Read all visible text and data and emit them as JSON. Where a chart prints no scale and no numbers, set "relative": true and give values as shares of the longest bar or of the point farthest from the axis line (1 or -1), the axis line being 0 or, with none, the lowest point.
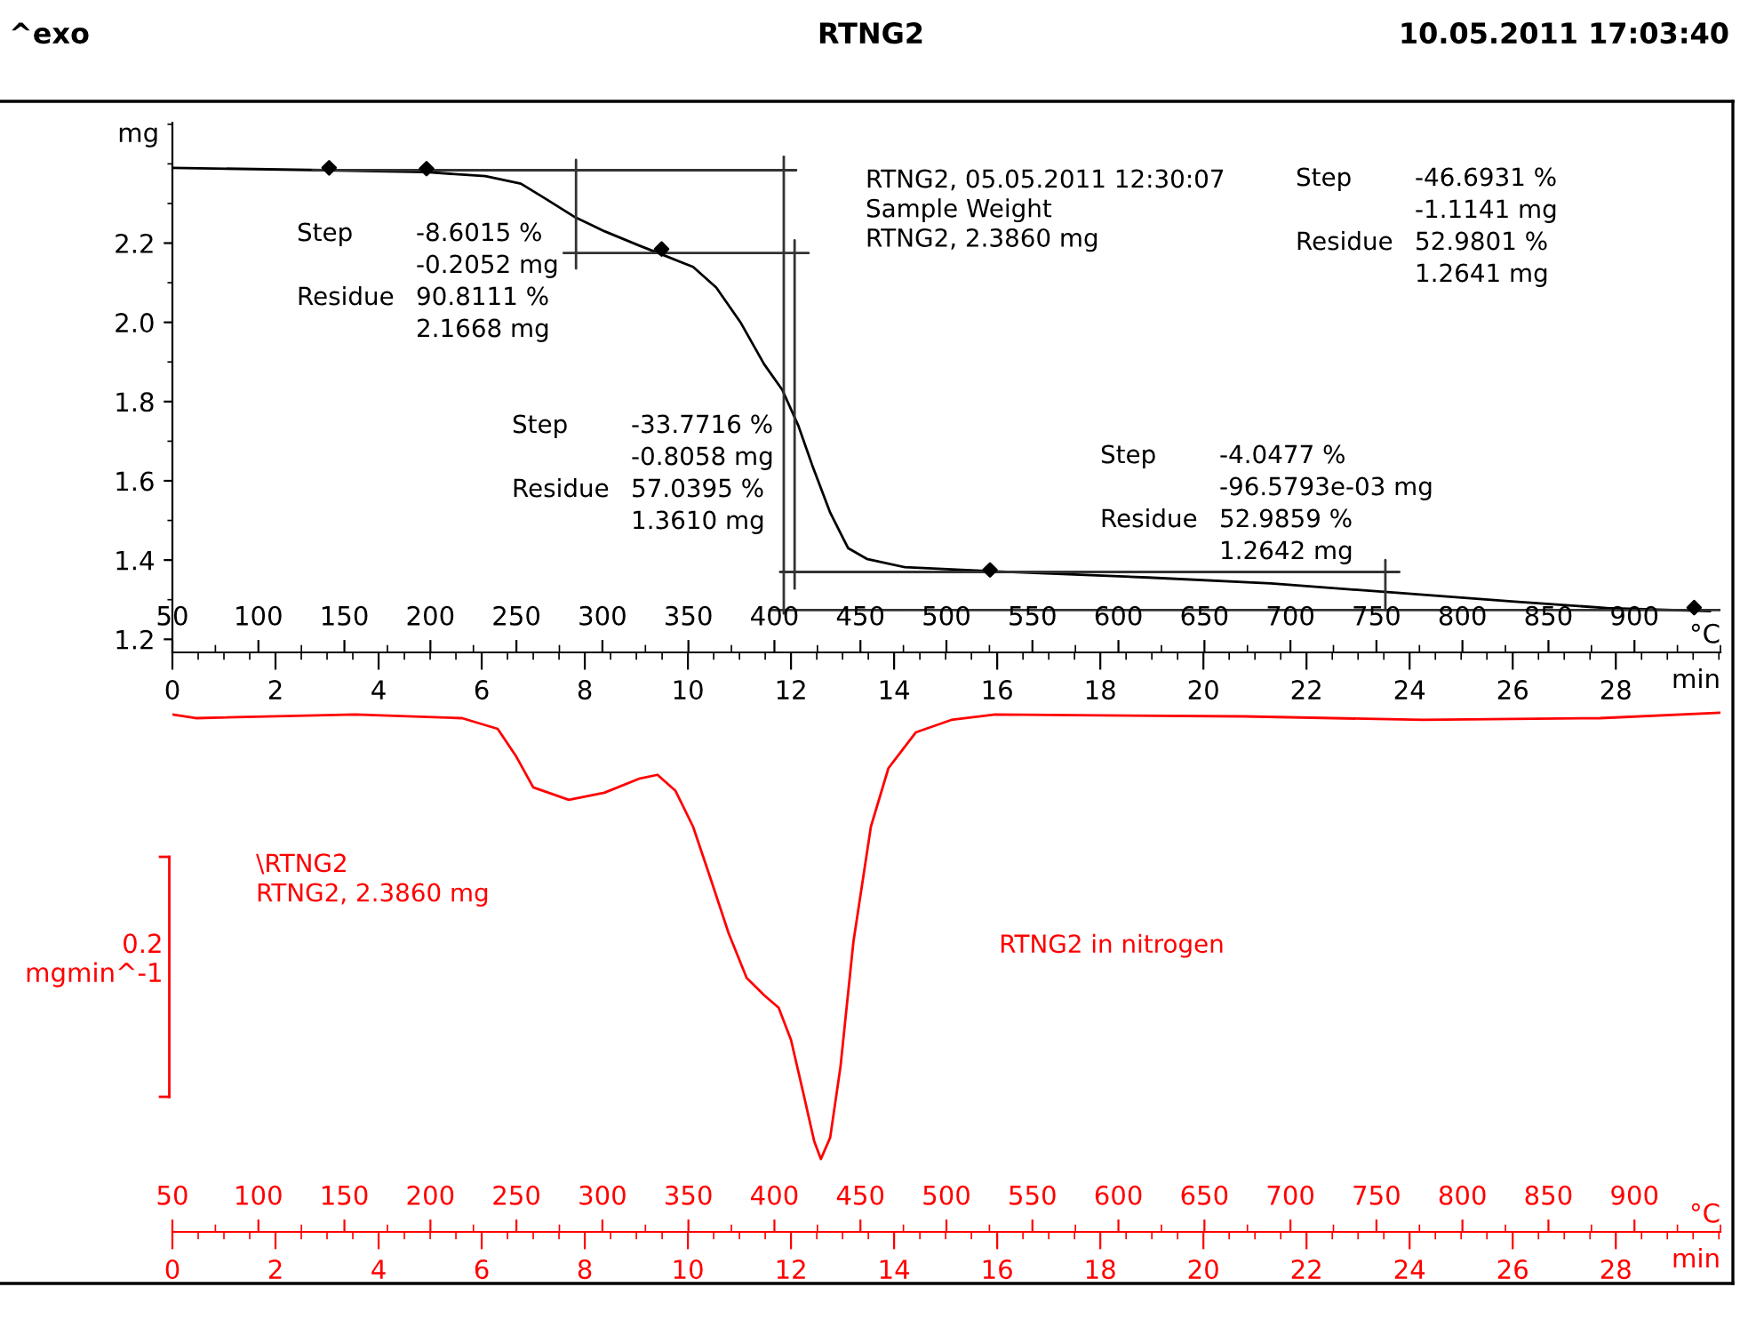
{
  "chart_data": [
    {
      "type": "line",
      "title": "RTNG2",
      "ylabel": "mg",
      "xlabel": "min",
      "x2label": "°C",
      "xlim": [
        0,
        30.03
      ],
      "xticks": [
        0,
        2,
        4,
        6,
        8,
        10,
        12,
        14,
        16,
        18,
        20,
        22,
        24,
        26,
        28
      ],
      "x2lim": [
        50,
        950
      ],
      "x2ticks": [
        50,
        100,
        150,
        200,
        250,
        300,
        350,
        400,
        450,
        500,
        550,
        600,
        650,
        700,
        750,
        800,
        850,
        900
      ],
      "ylim": [
        1.167,
        2.504
      ],
      "yticks": [
        1.2,
        1.4,
        1.6,
        1.8,
        {
          "value": 2,
          "label": "2.0"
        },
        2.2
      ],
      "series": [
        {
          "color": "#000000",
          "x": [
            0,
            2.96,
            4.93,
            6.07,
            6.76,
            7.24,
            7.79,
            8.38,
            9.07,
            9.52,
            10.1,
            10.55,
            11.03,
            11.48,
            11.83,
            12.14,
            12.41,
            12.76,
            13.0,
            13.11,
            13.47,
            14.21,
            15.86,
            18.93,
            21.31,
            23.69,
            26.04,
            27.83,
            29.83
          ],
          "values": [
            2.39,
            2.384,
            2.379,
            2.369,
            2.35,
            2.312,
            2.267,
            2.23,
            2.193,
            2.17,
            2.14,
            2.088,
            1.998,
            1.894,
            1.83,
            1.74,
            1.64,
            1.52,
            1.458,
            1.43,
            1.403,
            1.382,
            1.372,
            1.356,
            1.341,
            1.318,
            1.295,
            1.279,
            1.271
          ]
        },
        {
          "color": "#333333",
          "x": [
            2.72,
            12.1
          ],
          "values": [
            2.384,
            2.384
          ]
        },
        {
          "color": "#333333",
          "x": [
            7.59,
            12.34
          ],
          "values": [
            2.175,
            2.175
          ]
        },
        {
          "color": "#333333",
          "x": [
            11.79,
            23.8
          ],
          "values": [
            1.37,
            1.37
          ]
        },
        {
          "color": "#333333",
          "x": [
            11.59,
            30.03
          ],
          "values": [
            1.274,
            1.274
          ]
        },
        {
          "color": "#333333",
          "x": [
            7.83,
            7.83
          ],
          "values": [
            2.41,
            2.136
          ]
        },
        {
          "color": "#333333",
          "x": [
            11.86,
            11.86
          ],
          "values": [
            2.418,
            1.265
          ]
        },
        {
          "color": "#333333",
          "x": [
            12.07,
            12.07
          ],
          "values": [
            2.207,
            1.328
          ]
        },
        {
          "color": "#333333",
          "x": [
            23.53,
            23.53
          ],
          "values": [
            1.4,
            1.274
          ]
        },
        {
          "type": "scatter",
          "marker": "diamond",
          "color": "#000000",
          "x": [
            3.04,
            4.93,
            9.49,
            15.86,
            29.52
          ],
          "values": [
            2.39,
            2.388,
            2.185,
            1.375,
            1.28
          ]
        }
      ],
      "annotations": [
        "^exo",
        "10.05.2011 17:03:40",
        "Step",
        "-8.6015 %",
        "-0.2052 mg",
        "Residue",
        "90.8111 %",
        "2.1668 mg",
        "Step",
        "-33.7716 %",
        "-0.8058 mg",
        "Residue",
        "57.0395 %",
        "1.3610 mg",
        "RTNG2, 05.05.2011 12:30:07\nSample Weight\nRTNG2, 2.3860 mg",
        "Step",
        "-46.6931 %",
        "-1.1141 mg",
        "Residue",
        "52.9801 %",
        "1.2641 mg",
        "Step",
        "-4.0477 %",
        "-96.5793e-03 mg",
        "Residue",
        "52.9859 %",
        "1.2642 mg"
      ]
    },
    {
      "type": "line",
      "relative": true,
      "tick_labels": "x",
      "ylabel": "0.2\nmgmin^-1",
      "xlabel": "min",
      "x2label": "°C",
      "xlim": [
        0,
        30.03
      ],
      "xticks": [
        0,
        2,
        4,
        6,
        8,
        10,
        12,
        14,
        16,
        18,
        20,
        22,
        24,
        26,
        28
      ],
      "x2lim": [
        50,
        950
      ],
      "x2ticks": [
        50,
        100,
        150,
        200,
        250,
        300,
        350,
        400,
        450,
        500,
        550,
        600,
        650,
        700,
        750,
        800,
        850,
        900
      ],
      "series": [
        {
          "color": "#ff0000",
          "x": [
            0,
            0.45,
            3.55,
            5.62,
            6.31,
            6.66,
            7.0,
            7.69,
            8.38,
            9.07,
            9.41,
            9.76,
            10.1,
            10.45,
            10.79,
            11.14,
            11.48,
            11.76,
            12.0,
            12.24,
            12.45,
            12.58,
            12.76,
            12.96,
            13.21,
            13.55,
            13.89,
            14.42,
            15.11,
            15.96,
            20.79,
            24.25,
            27.69,
            30.03
          ],
          "values": [
            0.9966,
            0.9897,
            0.9966,
            0.9897,
            0.9691,
            0.9175,
            0.8564,
            0.8324,
            0.8461,
            0.8736,
            0.8805,
            0.8496,
            0.7808,
            0.6777,
            0.5754,
            0.4894,
            0.4559,
            0.4318,
            0.3699,
            0.2668,
            0.1748,
            0.1404,
            0.1817,
            0.3183,
            0.5582,
            0.7808,
            0.8934,
            0.9622,
            0.9863,
            0.9966,
            0.9931,
            0.9863,
            0.9897,
            1
          ]
        }
      ],
      "annotations": [
        "\\RTNG2\nRTNG2, 2.3860 mg",
        "RTNG2 in nitrogen"
      ]
    }
  ]
}
